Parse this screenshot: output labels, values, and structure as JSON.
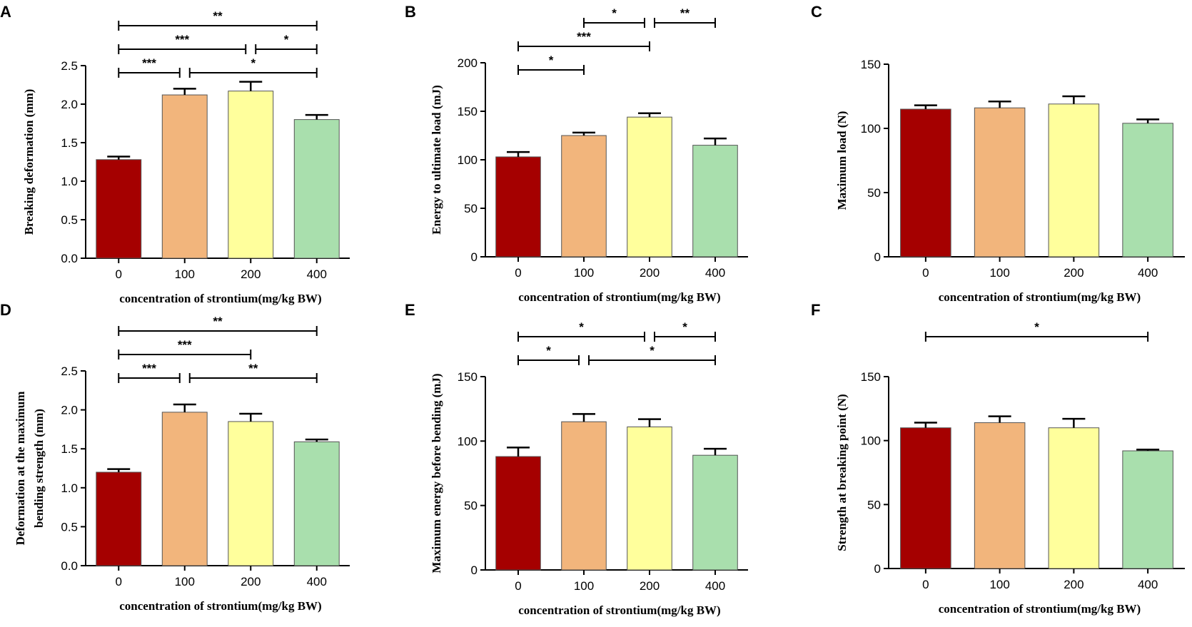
{
  "figure": {
    "background": "#ffffff",
    "bar_colors": [
      "#a50000",
      "#f2b57c",
      "#ffff9c",
      "#a9dfad"
    ],
    "bar_outline": "#555555"
  },
  "chart_data": [
    {
      "panel": "A",
      "type": "bar",
      "categories": [
        "0",
        "100",
        "200",
        "400"
      ],
      "values": [
        1.28,
        2.12,
        2.17,
        1.8
      ],
      "errors": [
        0.04,
        0.08,
        0.12,
        0.06
      ],
      "ylabel": [
        "Breaking deformation (mm)"
      ],
      "xlabel": "concentration of strontium(mg/kg BW)",
      "ylim": [
        0,
        2.5
      ],
      "yticks": [
        "0.0",
        "0.5",
        "1.0",
        "1.5",
        "2.0",
        "2.5"
      ],
      "grid": false,
      "significance": [
        {
          "from": 0,
          "to": 3,
          "label": "**",
          "level": 4
        },
        {
          "from": 0,
          "to": 2,
          "label": "***",
          "level": 3
        },
        {
          "from": 2,
          "to": 3,
          "label": "*",
          "level": 3
        },
        {
          "from": 0,
          "to": 1,
          "label": "***",
          "level": 2
        },
        {
          "from": 1,
          "to": 3,
          "label": "*",
          "level": 2
        }
      ]
    },
    {
      "panel": "B",
      "type": "bar",
      "categories": [
        "0",
        "100",
        "200",
        "400"
      ],
      "values": [
        103,
        125,
        144,
        115
      ],
      "errors": [
        5,
        3,
        4,
        7
      ],
      "ylabel": [
        "Energy to ultimate load (mJ)"
      ],
      "xlabel": "concentration of strontium(mg/kg BW)",
      "ylim": [
        0,
        200
      ],
      "yticks": [
        "0",
        "50",
        "100",
        "150",
        "200"
      ],
      "grid": false,
      "significance": [
        {
          "from": 1,
          "to": 2,
          "label": "*",
          "level": 4
        },
        {
          "from": 2,
          "to": 3,
          "label": "**",
          "level": 4
        },
        {
          "from": 0,
          "to": 2,
          "label": "***",
          "level": 3
        },
        {
          "from": 0,
          "to": 1,
          "label": "*",
          "level": 2
        }
      ]
    },
    {
      "panel": "C",
      "type": "bar",
      "categories": [
        "0",
        "100",
        "200",
        "400"
      ],
      "values": [
        115,
        116,
        119,
        104
      ],
      "errors": [
        3,
        5,
        6,
        3
      ],
      "ylabel": [
        "Maximum load (N)"
      ],
      "xlabel": "concentration of strontium(mg/kg BW)",
      "ylim": [
        0,
        150
      ],
      "yticks": [
        "0",
        "50",
        "100",
        "150"
      ],
      "grid": false,
      "significance": []
    },
    {
      "panel": "D",
      "type": "bar",
      "categories": [
        "0",
        "100",
        "200",
        "400"
      ],
      "values": [
        1.2,
        1.97,
        1.85,
        1.59
      ],
      "errors": [
        0.04,
        0.1,
        0.1,
        0.03
      ],
      "ylabel": [
        "Deformation at the maximum",
        "bending strength (mm)"
      ],
      "xlabel": "concentration of strontium(mg/kg BW)",
      "ylim": [
        0,
        2.5
      ],
      "yticks": [
        "0.0",
        "0.5",
        "1.0",
        "1.5",
        "2.0",
        "2.5"
      ],
      "grid": false,
      "significance": [
        {
          "from": 0,
          "to": 3,
          "label": "**",
          "level": 4
        },
        {
          "from": 0,
          "to": 2,
          "label": "***",
          "level": 3
        },
        {
          "from": 0,
          "to": 1,
          "label": "***",
          "level": 2
        },
        {
          "from": 1,
          "to": 3,
          "label": "**",
          "level": 2
        }
      ]
    },
    {
      "panel": "E",
      "type": "bar",
      "categories": [
        "0",
        "100",
        "200",
        "400"
      ],
      "values": [
        88,
        115,
        111,
        89
      ],
      "errors": [
        7,
        6,
        6,
        5
      ],
      "ylabel": [
        "Maximum energy before bending (mJ)"
      ],
      "xlabel": "concentration of strontium(mg/kg BW)",
      "ylim": [
        0,
        150
      ],
      "yticks": [
        "0",
        "50",
        "100",
        "150"
      ],
      "grid": false,
      "significance": [
        {
          "from": 0,
          "to": 2,
          "label": "*",
          "level": 4
        },
        {
          "from": 2,
          "to": 3,
          "label": "*",
          "level": 4
        },
        {
          "from": 0,
          "to": 1,
          "label": "*",
          "level": 3
        },
        {
          "from": 1,
          "to": 3,
          "label": "*",
          "level": 3
        }
      ]
    },
    {
      "panel": "F",
      "type": "bar",
      "categories": [
        "0",
        "100",
        "200",
        "400"
      ],
      "values": [
        110,
        114,
        110,
        92
      ],
      "errors": [
        4,
        5,
        7,
        1
      ],
      "ylabel": [
        "Strength at breaking point (N)"
      ],
      "xlabel": "concentration of strontium(mg/kg BW)",
      "ylim": [
        0,
        150
      ],
      "yticks": [
        "0",
        "50",
        "100",
        "150"
      ],
      "grid": false,
      "significance": [
        {
          "from": 0,
          "to": 3,
          "label": "*",
          "level": 4
        }
      ]
    }
  ]
}
